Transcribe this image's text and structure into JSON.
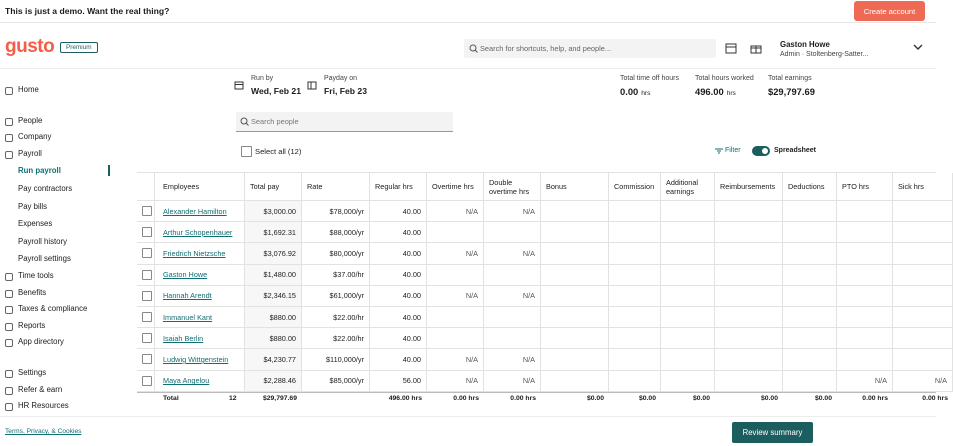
{
  "banner": {
    "text": "This is just a demo. Want the real thing?",
    "button": "Create account"
  },
  "header": {
    "logo": "gusto",
    "badge": "Premium",
    "search_placeholder": "Search for shortcuts, help, and people...",
    "user_name": "Gaston Howe",
    "user_role": "Admin · Stoltenberg-Satter..."
  },
  "sidebar": {
    "sections": [
      {
        "items": [
          {
            "label": "Home"
          }
        ]
      },
      {
        "items": [
          {
            "label": "People"
          },
          {
            "label": "Company"
          },
          {
            "label": "Payroll",
            "children": [
              "Run payroll",
              "Pay contractors",
              "Pay bills",
              "Expenses",
              "Payroll history",
              "Payroll settings"
            ]
          },
          {
            "label": "Time tools"
          },
          {
            "label": "Benefits"
          },
          {
            "label": "Taxes & compliance"
          },
          {
            "label": "Reports"
          },
          {
            "label": "App directory"
          }
        ]
      },
      {
        "items": [
          {
            "label": "Settings"
          },
          {
            "label": "Refer & earn"
          },
          {
            "label": "HR Resources"
          }
        ]
      }
    ],
    "footer": "Terms, Privacy, & Cookies"
  },
  "summary": {
    "run_by": {
      "label": "Run by",
      "value": "Wed, Feb 21"
    },
    "payday": {
      "label": "Payday on",
      "value": "Fri, Feb 23"
    },
    "stats": [
      {
        "label": "Total time off hours",
        "value": "0.00",
        "unit": "hrs"
      },
      {
        "label": "Total hours worked",
        "value": "496.00",
        "unit": "hrs"
      },
      {
        "label": "Total earnings",
        "value": "$29,797.69"
      }
    ]
  },
  "toolbar": {
    "search_placeholder": "Search people",
    "select_all": "Select all (12)",
    "filter": "Filter",
    "spreadsheet": "Spreadsheet"
  },
  "table": {
    "columns": [
      "Employees",
      "Total pay",
      "Rate",
      "Regular hrs",
      "Overtime hrs",
      "Double overtime hrs",
      "Bonus",
      "Commission",
      "Additional earnings",
      "Reimbursements",
      "Deductions",
      "PTO hrs",
      "Sick hrs"
    ],
    "rows": [
      {
        "name": "Alexander Hamilton",
        "total_pay": "$3,000.00",
        "rate": "$78,000/yr",
        "regular_hrs": "40.00",
        "overtime_hrs": "N/A",
        "double_overtime_hrs": "N/A"
      },
      {
        "name": "Arthur Schopenhauer",
        "total_pay": "$1,692.31",
        "rate": "$88,000/yr",
        "regular_hrs": "40.00"
      },
      {
        "name": "Friedrich Nietzsche",
        "total_pay": "$3,076.92",
        "rate": "$80,000/yr",
        "regular_hrs": "40.00",
        "overtime_hrs": "N/A",
        "double_overtime_hrs": "N/A"
      },
      {
        "name": "Gaston Howe",
        "total_pay": "$1,480.00",
        "rate": "$37.00/hr",
        "regular_hrs": "40.00"
      },
      {
        "name": "Hannah Arendt",
        "total_pay": "$2,346.15",
        "rate": "$61,000/yr",
        "regular_hrs": "40.00",
        "overtime_hrs": "N/A",
        "double_overtime_hrs": "N/A"
      },
      {
        "name": "Immanuel Kant",
        "total_pay": "$880.00",
        "rate": "$22.00/hr",
        "regular_hrs": "40.00"
      },
      {
        "name": "Isaiah Berlin",
        "total_pay": "$880.00",
        "rate": "$22.00/hr",
        "regular_hrs": "40.00"
      },
      {
        "name": "Ludwig Wittgenstein",
        "total_pay": "$4,230.77",
        "rate": "$110,000/yr",
        "regular_hrs": "40.00",
        "overtime_hrs": "N/A",
        "double_overtime_hrs": "N/A"
      },
      {
        "name": "Maya Angelou",
        "total_pay": "$2,288.46",
        "rate": "$85,000/yr",
        "regular_hrs": "56.00",
        "overtime_hrs": "N/A",
        "double_overtime_hrs": "N/A",
        "pto_hrs": "N/A",
        "sick_hrs": "N/A"
      }
    ],
    "total": {
      "name": "Total",
      "count": "12",
      "total_pay": "$29,797.69",
      "regular_hrs": "496.00 hrs",
      "overtime_hrs": "0.00 hrs",
      "double_overtime_hrs": "0.00 hrs",
      "bonus": "$0.00",
      "commission": "$0.00",
      "additional_earnings": "$0.00",
      "reimbursements": "$0.00",
      "deductions": "$0.00",
      "pto_hrs": "0.00 hrs",
      "sick_hrs": "0.00 hrs"
    }
  },
  "footer_button": "Review summary"
}
